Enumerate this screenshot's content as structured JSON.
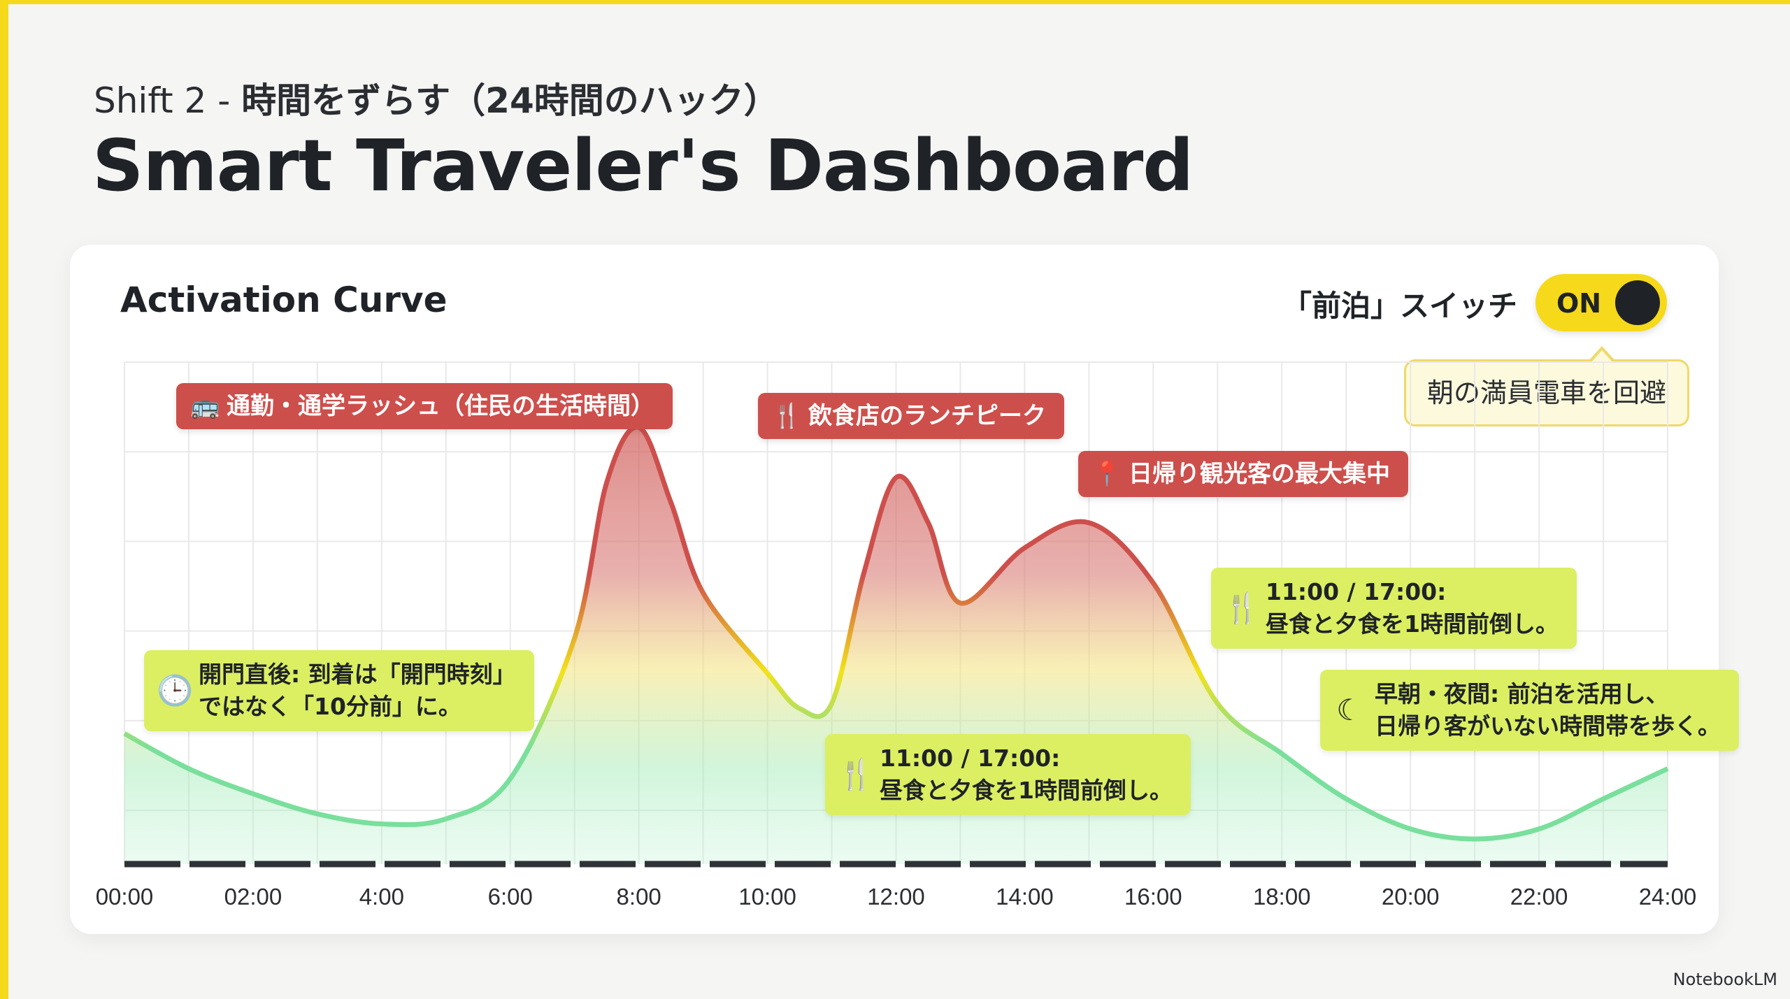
{
  "header": {
    "subtitle_prefix": "Shift 2 - ",
    "subtitle_jp": "時間をずらす（24時間のハック）",
    "title": "Smart Traveler's Dashboard"
  },
  "card": {
    "title": "Activation Curve",
    "switch_label": "「前泊」スイッチ",
    "toggle_label": "ON",
    "tooltip": "朝の満員電車を回避"
  },
  "labels": {
    "commute": "通勤・通学ラッシュ（住民の生活時間）",
    "lunch": "飲食店のランチピーク",
    "daytrip": "日帰り観光客の最大集中"
  },
  "notes": {
    "opening": [
      "開門直後: 到着は「開門時刻」",
      "ではなく「10分前」に。"
    ],
    "meals_low": [
      "11:00 / 17:00:",
      "昼食と夕食を1時間前倒し。"
    ],
    "meals_high": [
      "11:00 / 17:00:",
      "昼食と夕食を1時間前倒し。"
    ],
    "night": [
      "早朝・夜間: 前泊を活用し、",
      "日帰り客がいない時間帯を歩く。"
    ]
  },
  "icons": {
    "commute": "bus-icon",
    "lunch": "fork-knife-icon",
    "daytrip": "location-pin-icon",
    "opening": "clock-icon",
    "meals": "fork-knife-icon",
    "night": "moon-icon"
  },
  "colors": {
    "accent_yellow": "#f6d91a",
    "label_red": "#cd4f4c",
    "note_green": "#dcef62",
    "curve_red": "#cd4f4c",
    "curve_yellow": "#f2e21a",
    "curve_green": "#79df9c"
  },
  "chart_data": {
    "type": "area",
    "title": "Activation Curve",
    "x": [
      0,
      1,
      2,
      3,
      4,
      5,
      6,
      7,
      7.5,
      8,
      8.5,
      9,
      10,
      10.5,
      11,
      11.5,
      12,
      12.5,
      13,
      14,
      15,
      16,
      17,
      18,
      19,
      20,
      21,
      22,
      23,
      24
    ],
    "y": [
      2.6,
      1.9,
      1.4,
      1.0,
      0.8,
      0.9,
      1.7,
      4.5,
      7.6,
      8.7,
      7.2,
      5.4,
      3.8,
      3.1,
      3.2,
      5.8,
      7.7,
      6.8,
      5.2,
      6.3,
      6.8,
      5.6,
      3.2,
      2.2,
      1.3,
      0.7,
      0.5,
      0.7,
      1.3,
      1.9
    ],
    "xlim": [
      0,
      24
    ],
    "ylim": [
      0,
      10
    ],
    "xticks": [
      "00:00",
      "02:00",
      "4:00",
      "6:00",
      "8:00",
      "10:00",
      "12:00",
      "14:00",
      "16:00",
      "18:00",
      "20:00",
      "22:00",
      "24:00"
    ],
    "grid": true,
    "xlabel": "",
    "ylabel": ""
  }
}
